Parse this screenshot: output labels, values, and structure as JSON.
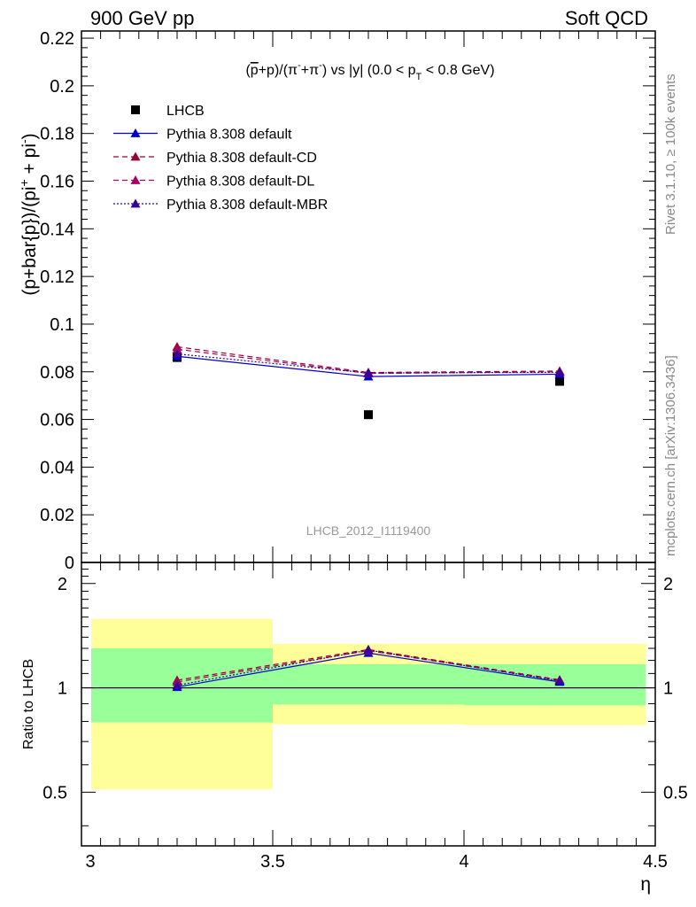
{
  "header": {
    "left_label": "900 GeV pp",
    "right_label": "Soft QCD"
  },
  "side_labels": {
    "rivet": "Rivet 3.1.10, ≥ 100k events",
    "mcplots": "mcplots.cern.ch [arXiv:1306.3436]"
  },
  "colors": {
    "LHCB": "#000000",
    "default": "#0000cc",
    "default-CD": "#990033",
    "default-DL": "#aa0066",
    "default-MBR": "#330099",
    "band_inner": "#99ff99",
    "band_outer": "#ffff99"
  },
  "chart_data": [
    {
      "type": "scatter",
      "title_parts": {
        "a": "(",
        "pbar": "p",
        "b": "+p)/(π",
        "sup1": "-",
        "c": "+π",
        "sup2": "-",
        "d": ") vs |y| (0.0 < p",
        "sub": "T",
        "e": " < 0.8 GeV)"
      },
      "ylabel_parts": {
        "a": "(p+bar{p})/(pi",
        "sup1": "+",
        "b": " + pi",
        "sup2": "-",
        "c": ")"
      },
      "watermark": "LHCB_2012_I1119400",
      "xlim": [
        3.0,
        4.5
      ],
      "ylim": [
        0,
        0.223
      ],
      "y_ticks": [
        "0",
        "0.02",
        "0.04",
        "0.06",
        "0.08",
        "0.1",
        "0.12",
        "0.14",
        "0.16",
        "0.18",
        "0.2",
        "0.22"
      ],
      "x": [
        3.25,
        3.75,
        4.25
      ],
      "series": [
        {
          "name": "LHCB",
          "values": [
            0.086,
            0.062,
            0.076
          ],
          "marker": "square",
          "line": "none",
          "color": "#000000"
        },
        {
          "name": "Pythia 8.308 default",
          "values": [
            0.0865,
            0.078,
            0.079
          ],
          "marker": "triangle",
          "line": "solid",
          "color": "#0000cc"
        },
        {
          "name": "Pythia 8.308 default-CD",
          "values": [
            0.0905,
            0.0797,
            0.0803
          ],
          "marker": "triangle",
          "line": "dashed",
          "color": "#990033"
        },
        {
          "name": "Pythia 8.308 default-DL",
          "values": [
            0.0895,
            0.0793,
            0.08
          ],
          "marker": "triangle",
          "line": "dashed",
          "color": "#aa0066"
        },
        {
          "name": "Pythia 8.308 default-MBR",
          "values": [
            0.0875,
            0.0795,
            0.0798
          ],
          "marker": "triangle",
          "line": "dotted",
          "color": "#330099"
        }
      ],
      "legend": "top-left"
    },
    {
      "type": "line",
      "ylabel": "Ratio to LHCB",
      "xlabel": "η",
      "xlim": [
        3.0,
        4.5
      ],
      "ylim": [
        0.35,
        2.3
      ],
      "x_ticks": [
        "3",
        "3.5",
        "4",
        "4.5"
      ],
      "y_ticks": [
        "0.5",
        "1",
        "2"
      ],
      "reference_line": 1,
      "bands": [
        {
          "x0": 3.0,
          "x1": 3.5,
          "inner": [
            0.795,
            1.3
          ],
          "outer": [
            0.51,
            1.58
          ]
        },
        {
          "x0": 3.5,
          "x1": 4.0,
          "inner": [
            0.895,
            1.17
          ],
          "outer": [
            0.785,
            1.34
          ]
        },
        {
          "x0": 4.0,
          "x1": 4.5,
          "inner": [
            0.89,
            1.17
          ],
          "outer": [
            0.78,
            1.34
          ]
        }
      ],
      "x": [
        3.25,
        3.75,
        4.25
      ],
      "series": [
        {
          "name": "Pythia 8.308 default",
          "values": [
            1.005,
            1.26,
            1.04
          ],
          "color": "#0000cc",
          "line": "solid"
        },
        {
          "name": "Pythia 8.308 default-CD",
          "values": [
            1.052,
            1.29,
            1.055
          ],
          "color": "#990033",
          "line": "dashed"
        },
        {
          "name": "Pythia 8.308 default-DL",
          "values": [
            1.04,
            1.28,
            1.05
          ],
          "color": "#aa0066",
          "line": "dashed"
        },
        {
          "name": "Pythia 8.308 default-MBR",
          "values": [
            1.017,
            1.285,
            1.048
          ],
          "color": "#330099",
          "line": "dotted"
        }
      ]
    }
  ]
}
